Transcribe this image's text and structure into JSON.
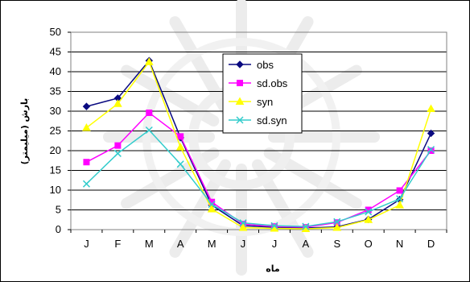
{
  "chart_data": {
    "type": "line",
    "xlabel": "ماه",
    "ylabel": "بارش (میلیمتر)",
    "categories": [
      "J",
      "F",
      "M",
      "A",
      "M",
      "J",
      "J",
      "A",
      "S",
      "O",
      "N",
      "D"
    ],
    "ylim": [
      0,
      50
    ],
    "yticks": [
      0,
      5,
      10,
      15,
      20,
      25,
      30,
      35,
      40,
      45,
      50
    ],
    "grid": true,
    "legend_position": "top-right",
    "series": [
      {
        "name": "obs",
        "color": "#0a0a80",
        "marker": "diamond",
        "values": [
          31.2,
          33.3,
          42.8,
          23.3,
          6.2,
          1.0,
          0.6,
          0.4,
          0.7,
          2.6,
          7.6,
          24.4
        ]
      },
      {
        "name": "sd.obs",
        "color": "#ff00ff",
        "marker": "square",
        "values": [
          17.1,
          21.3,
          29.6,
          23.6,
          7.0,
          1.4,
          0.8,
          0.6,
          1.8,
          5.0,
          9.9,
          20.0
        ]
      },
      {
        "name": "syn",
        "color": "#ffff00",
        "marker": "triangle",
        "values": [
          25.8,
          31.9,
          42.5,
          20.9,
          5.2,
          0.5,
          0.3,
          0.2,
          0.5,
          2.5,
          6.2,
          30.6
        ]
      },
      {
        "name": "sd.syn",
        "color": "#33cccc",
        "marker": "x",
        "values": [
          11.6,
          19.3,
          25.2,
          16.6,
          6.4,
          1.7,
          1.0,
          0.8,
          2.0,
          4.5,
          7.8,
          20.3
        ]
      }
    ]
  }
}
